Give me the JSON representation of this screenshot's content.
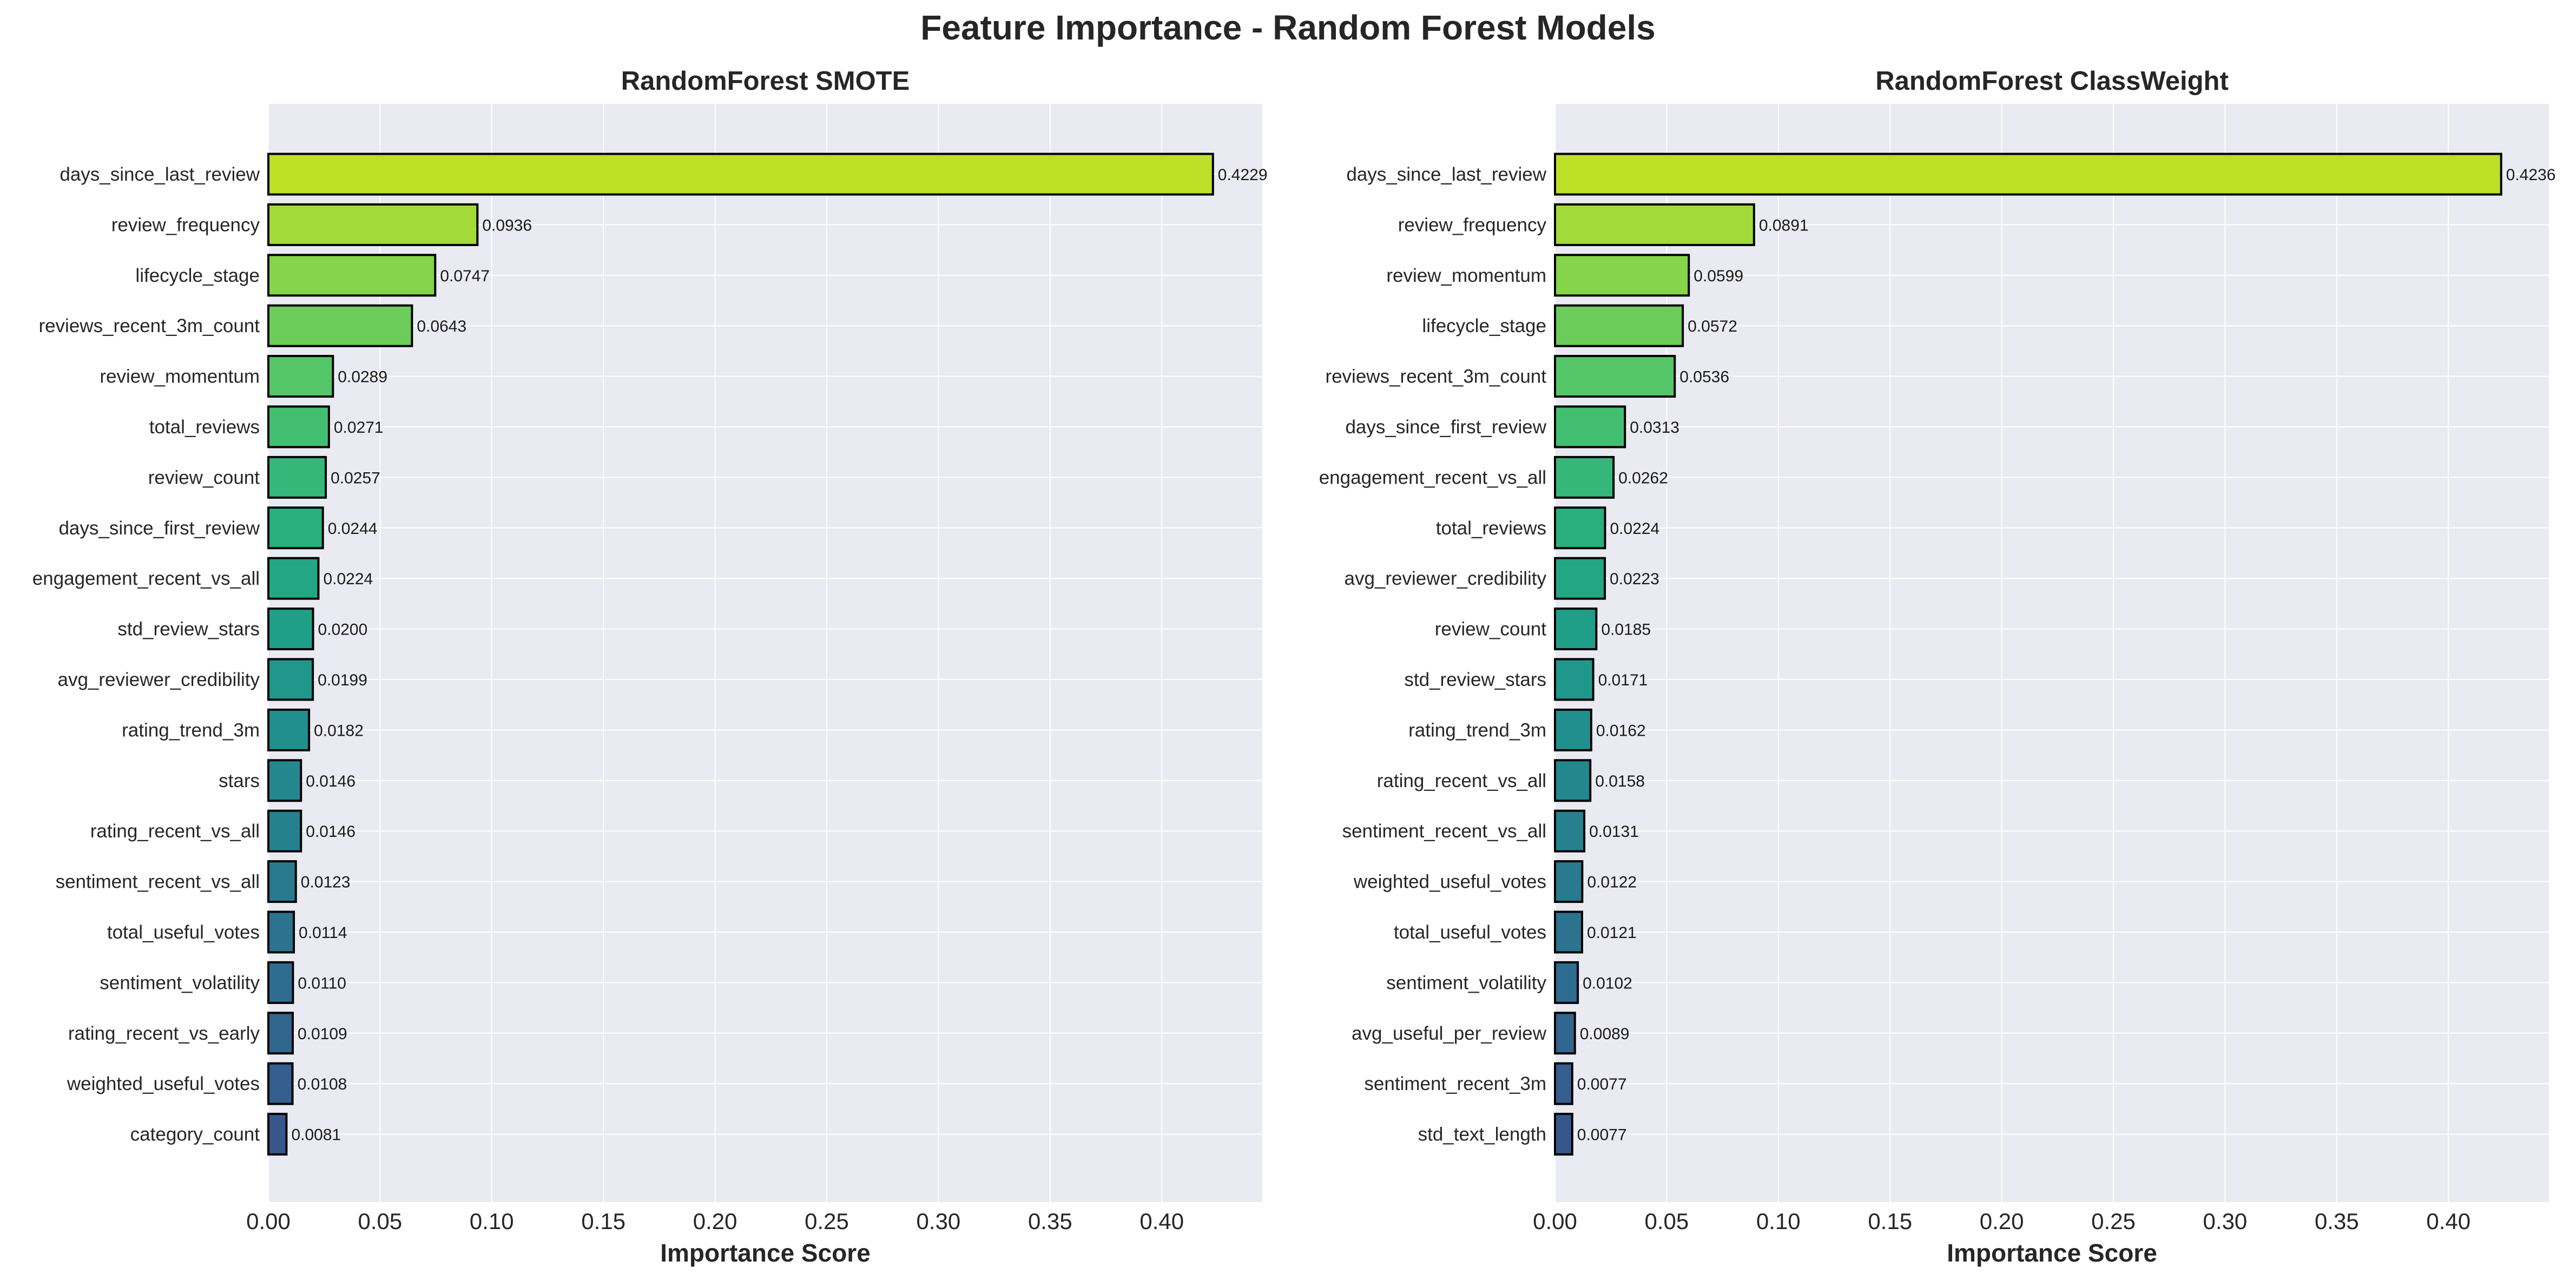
{
  "figure_title": "Feature Importance - Random Forest Models",
  "chart_data": [
    {
      "type": "bar",
      "orientation": "horizontal",
      "title": "RandomForest SMOTE",
      "xlabel": "Importance Score",
      "ylabel": "",
      "xlim": [
        0,
        0.445
      ],
      "xticks": [
        "0.00",
        "0.05",
        "0.10",
        "0.15",
        "0.20",
        "0.25",
        "0.30",
        "0.35",
        "0.40"
      ],
      "grid": true,
      "categories": [
        "days_since_last_review",
        "review_frequency",
        "lifecycle_stage",
        "reviews_recent_3m_count",
        "review_momentum",
        "total_reviews",
        "review_count",
        "days_since_first_review",
        "engagement_recent_vs_all",
        "std_review_stars",
        "avg_reviewer_credibility",
        "rating_trend_3m",
        "stars",
        "rating_recent_vs_all",
        "sentiment_recent_vs_all",
        "total_useful_votes",
        "sentiment_volatility",
        "rating_recent_vs_early",
        "weighted_useful_votes",
        "category_count"
      ],
      "values": [
        0.4229,
        0.0936,
        0.0747,
        0.0643,
        0.0289,
        0.0271,
        0.0257,
        0.0244,
        0.0224,
        0.02,
        0.0199,
        0.0182,
        0.0146,
        0.0146,
        0.0123,
        0.0114,
        0.011,
        0.0109,
        0.0108,
        0.0081
      ],
      "value_labels": [
        "0.4229",
        "0.0936",
        "0.0747",
        "0.0643",
        "0.0289",
        "0.0271",
        "0.0257",
        "0.0244",
        "0.0224",
        "0.0200",
        "0.0199",
        "0.0182",
        "0.0146",
        "0.0146",
        "0.0123",
        "0.0114",
        "0.0110",
        "0.0109",
        "0.0108",
        "0.0081"
      ],
      "colormap": "viridis (top yellow-green to bottom dark blue)"
    },
    {
      "type": "bar",
      "orientation": "horizontal",
      "title": "RandomForest ClassWeight",
      "xlabel": "Importance Score",
      "ylabel": "",
      "xlim": [
        0,
        0.445
      ],
      "xticks": [
        "0.00",
        "0.05",
        "0.10",
        "0.15",
        "0.20",
        "0.25",
        "0.30",
        "0.35",
        "0.40"
      ],
      "grid": true,
      "categories": [
        "days_since_last_review",
        "review_frequency",
        "review_momentum",
        "lifecycle_stage",
        "reviews_recent_3m_count",
        "days_since_first_review",
        "engagement_recent_vs_all",
        "total_reviews",
        "avg_reviewer_credibility",
        "review_count",
        "std_review_stars",
        "rating_trend_3m",
        "rating_recent_vs_all",
        "sentiment_recent_vs_all",
        "weighted_useful_votes",
        "total_useful_votes",
        "sentiment_volatility",
        "avg_useful_per_review",
        "sentiment_recent_3m",
        "std_text_length"
      ],
      "values": [
        0.4236,
        0.0891,
        0.0599,
        0.0572,
        0.0536,
        0.0313,
        0.0262,
        0.0224,
        0.0223,
        0.0185,
        0.0171,
        0.0162,
        0.0158,
        0.0131,
        0.0122,
        0.0121,
        0.0102,
        0.0089,
        0.0077,
        0.0077
      ],
      "value_labels": [
        "0.4236",
        "0.0891",
        "0.0599",
        "0.0572",
        "0.0536",
        "0.0313",
        "0.0262",
        "0.0224",
        "0.0223",
        "0.0185",
        "0.0171",
        "0.0162",
        "0.0158",
        "0.0131",
        "0.0122",
        "0.0121",
        "0.0102",
        "0.0089",
        "0.0077",
        "0.0077"
      ],
      "colormap": "viridis (top yellow-green to bottom dark blue)"
    }
  ],
  "colors": {
    "plot_background": "#EAEAF2",
    "grid": "#FFFFFF",
    "bar_edge": "#000000",
    "bar_gradient": [
      "#BDDF26",
      "#A2DA37",
      "#85D44A",
      "#6CCD5A",
      "#55C667",
      "#42BE71",
      "#35B779",
      "#29AF7F",
      "#22A785",
      "#1F9F88",
      "#1F978B",
      "#218F8D",
      "#23888E",
      "#26818E",
      "#287A8E",
      "#2B738E",
      "#2D6C8E",
      "#30658E",
      "#335E8D",
      "#36568C"
    ]
  }
}
